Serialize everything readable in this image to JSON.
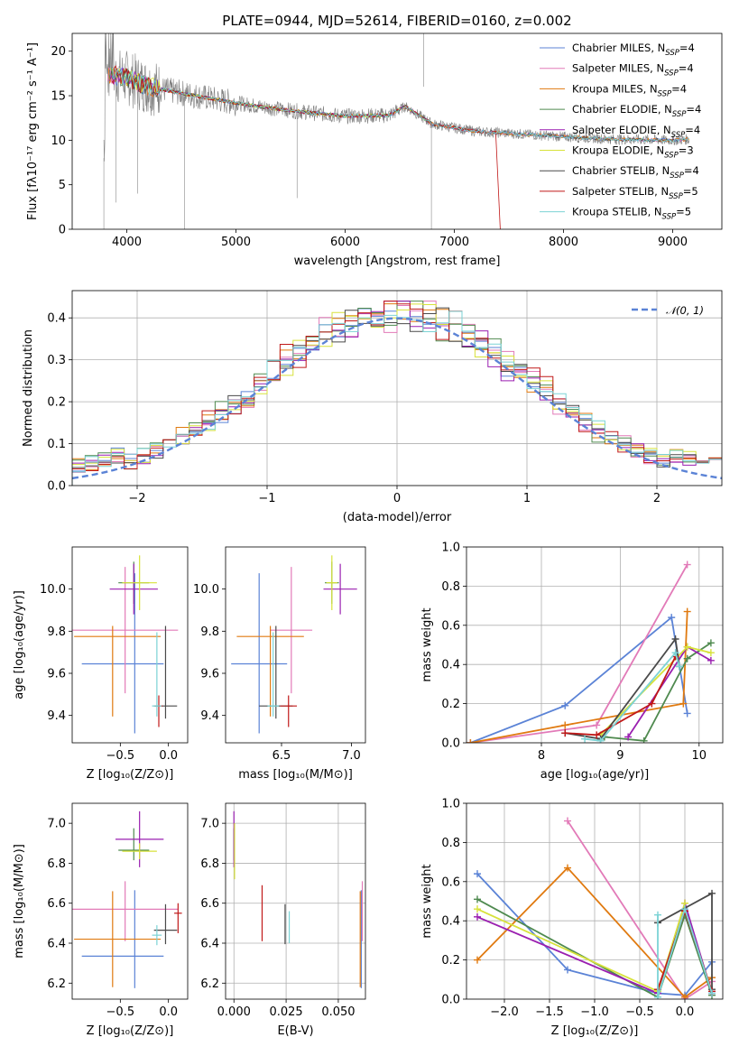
{
  "colors": {
    "Chabrier MILES": "#5b83d6",
    "Salpeter MILES": "#e27ab8",
    "Kroupa MILES": "#e07a10",
    "Chabrier ELODIE": "#4f8a4f",
    "Salpeter ELODIE": "#9a1fb0",
    "Kroupa ELODIE": "#d7e23a",
    "Chabrier STELIB": "#4a4a4a",
    "Salpeter STELIB": "#c01818",
    "Kroupa STELIB": "#7bd3d5"
  },
  "chart_data": [
    {
      "type": "line",
      "title": "PLATE=0944, MJD=52614, FIBERID=0160, z=0.002",
      "xlabel": "wavelength [Angstrom, rest frame]",
      "ylabel": "Flux [fλ10⁻¹⁷ erg cm⁻² s⁻¹ A⁻¹]",
      "xlim": [
        3500,
        9450
      ],
      "ylim": [
        0,
        22
      ],
      "xticks": [
        4000,
        5000,
        6000,
        7000,
        8000,
        9000
      ],
      "yticks": [
        0,
        5,
        10,
        15,
        20
      ],
      "legend_position": "upper-right",
      "legend": [
        {
          "name": "Chabrier MILES",
          "label": "Chabrier MILES, N",
          "sub": "SSP",
          "tail": "=4"
        },
        {
          "name": "Salpeter MILES",
          "label": "Salpeter MILES, N",
          "sub": "SSP",
          "tail": "=4"
        },
        {
          "name": "Kroupa MILES",
          "label": "Kroupa MILES, N",
          "sub": "SSP",
          "tail": "=4"
        },
        {
          "name": "Chabrier ELODIE",
          "label": "Chabrier ELODIE, N",
          "sub": "SSP",
          "tail": "=4"
        },
        {
          "name": "Salpeter ELODIE",
          "label": "Salpeter ELODIE, N",
          "sub": "SSP",
          "tail": "=4"
        },
        {
          "name": "Kroupa ELODIE",
          "label": "Kroupa ELODIE, N",
          "sub": "SSP",
          "tail": "=3"
        },
        {
          "name": "Chabrier STELIB",
          "label": "Chabrier STELIB, N",
          "sub": "SSP",
          "tail": "=4"
        },
        {
          "name": "Salpeter STELIB",
          "label": "Salpeter STELIB, N",
          "sub": "SSP",
          "tail": "=5"
        },
        {
          "name": "Kroupa STELIB",
          "label": "Kroupa STELIB, N",
          "sub": "SSP",
          "tail": "=5"
        }
      ],
      "data": {
        "observed_color": "#7f7f7f",
        "continuum_points": [
          [
            3800,
            17.5
          ],
          [
            4000,
            17.0
          ],
          [
            4200,
            16.0
          ],
          [
            4500,
            15.3
          ],
          [
            4800,
            14.6
          ],
          [
            5200,
            13.8
          ],
          [
            5600,
            13.2
          ],
          [
            6000,
            12.7
          ],
          [
            6400,
            12.8
          ],
          [
            6550,
            13.8
          ],
          [
            6650,
            13.0
          ],
          [
            6800,
            11.8
          ],
          [
            7200,
            11.0
          ],
          [
            7600,
            10.7
          ],
          [
            8000,
            10.4
          ],
          [
            8500,
            10.1
          ],
          [
            9000,
            10.0
          ],
          [
            9150,
            10.1
          ]
        ]
      }
    },
    {
      "type": "histogram",
      "xlabel": "(data-model)/error",
      "ylabel": "Normed distribution",
      "xlim": [
        -2.5,
        2.5
      ],
      "ylim": [
        0,
        0.465
      ],
      "xticks": [
        -2,
        -1,
        0,
        1,
        2
      ],
      "yticks": [
        0.0,
        0.1,
        0.2,
        0.3,
        0.4
      ],
      "grid": true,
      "reference_curve": {
        "name": "N(0,1)",
        "label": "𝒩(0, 1)",
        "mean": 0,
        "std": 1,
        "color": "#5b83d6"
      },
      "bin_width": 0.1,
      "bin_start": -2.5
    },
    {
      "type": "errorbar",
      "xlabel": "Z [log₁₀(Z/Z⊙)]",
      "ylabel": "age  [log₁₀(age/yr)]",
      "xlim": [
        -1.0,
        0.2
      ],
      "ylim": [
        9.27,
        10.2
      ],
      "xticks": [
        -0.5,
        0.0
      ],
      "yticks": [
        9.4,
        9.6,
        9.8,
        10.0
      ],
      "points": [
        {
          "name": "Chabrier MILES",
          "x": -0.35,
          "xerr": [
            0.55,
            0.3
          ],
          "y": 9.645,
          "yerr": [
            0.33,
            0.43
          ]
        },
        {
          "name": "Salpeter MILES",
          "x": -0.45,
          "xerr": [
            0.55,
            0.55
          ],
          "y": 9.805,
          "yerr": [
            0.3,
            0.3
          ]
        },
        {
          "name": "Kroupa MILES",
          "x": -0.58,
          "xerr": [
            0.4,
            0.5
          ],
          "y": 9.775,
          "yerr": [
            0.38,
            0.05
          ]
        },
        {
          "name": "Chabrier ELODIE",
          "x": -0.36,
          "xerr": [
            0.16,
            0.16
          ],
          "y": 10.03,
          "yerr": [
            0.1,
            0.1
          ]
        },
        {
          "name": "Salpeter ELODIE",
          "x": -0.36,
          "xerr": [
            0.25,
            0.25
          ],
          "y": 10.0,
          "yerr": [
            0.12,
            0.12
          ]
        },
        {
          "name": "Kroupa ELODIE",
          "x": -0.3,
          "xerr": [
            0.18,
            0.18
          ],
          "y": 10.03,
          "yerr": [
            0.13,
            0.13
          ]
        },
        {
          "name": "Chabrier STELIB",
          "x": -0.03,
          "xerr": [
            0.12,
            0.12
          ],
          "y": 9.445,
          "yerr": [
            0.06,
            0.38
          ]
        },
        {
          "name": "Salpeter STELIB",
          "x": -0.1,
          "xerr": [
            0.04,
            0.04
          ],
          "y": 9.445,
          "yerr": [
            0.1,
            0.05
          ]
        },
        {
          "name": "Kroupa STELIB",
          "x": -0.12,
          "xerr": [
            0.05,
            0.05
          ],
          "y": 9.445,
          "yerr": [
            0.05,
            0.35
          ]
        }
      ]
    },
    {
      "type": "errorbar",
      "xlabel": "mass [log₁₀(M/M⊙)]",
      "ylabel": "",
      "xlim": [
        6.1,
        7.1
      ],
      "ylim": [
        9.27,
        10.2
      ],
      "xticks": [
        6.5,
        7.0
      ],
      "yticks": [
        9.4,
        9.6,
        9.8,
        10.0
      ],
      "points": [
        {
          "name": "Chabrier MILES",
          "x": 6.34,
          "xerr": [
            0.2,
            0.2
          ],
          "y": 9.645,
          "yerr": [
            0.33,
            0.43
          ]
        },
        {
          "name": "Salpeter MILES",
          "x": 6.57,
          "xerr": [
            0.15,
            0.15
          ],
          "y": 9.805,
          "yerr": [
            0.3,
            0.3
          ]
        },
        {
          "name": "Kroupa MILES",
          "x": 6.42,
          "xerr": [
            0.24,
            0.24
          ],
          "y": 9.775,
          "yerr": [
            0.38,
            0.05
          ]
        },
        {
          "name": "Chabrier ELODIE",
          "x": 6.86,
          "xerr": [
            0.05,
            0.05
          ],
          "y": 10.03,
          "yerr": [
            0.1,
            0.1
          ]
        },
        {
          "name": "Salpeter ELODIE",
          "x": 6.92,
          "xerr": [
            0.12,
            0.12
          ],
          "y": 10.0,
          "yerr": [
            0.12,
            0.12
          ]
        },
        {
          "name": "Kroupa ELODIE",
          "x": 6.86,
          "xerr": [
            0.04,
            0.04
          ],
          "y": 10.03,
          "yerr": [
            0.13,
            0.13
          ]
        },
        {
          "name": "Chabrier STELIB",
          "x": 6.46,
          "xerr": [
            0.12,
            0.12
          ],
          "y": 9.445,
          "yerr": [
            0.06,
            0.38
          ]
        },
        {
          "name": "Salpeter STELIB",
          "x": 6.55,
          "xerr": [
            0.06,
            0.06
          ],
          "y": 9.445,
          "yerr": [
            0.1,
            0.05
          ]
        },
        {
          "name": "Kroupa STELIB",
          "x": 6.44,
          "xerr": [
            0.04,
            0.04
          ],
          "y": 9.445,
          "yerr": [
            0.05,
            0.35
          ]
        }
      ]
    },
    {
      "type": "line",
      "xlabel": "age  [log₁₀(age/yr)]",
      "ylabel": "mass weight",
      "xlim": [
        7.05,
        10.3
      ],
      "ylim": [
        0,
        1
      ],
      "xticks": [
        8,
        9,
        10
      ],
      "yticks": [
        0.0,
        0.2,
        0.4,
        0.6,
        0.8,
        1.0
      ],
      "grid": true,
      "series": [
        {
          "name": "Chabrier MILES",
          "x": [
            7.1,
            8.3,
            9.65,
            9.85
          ],
          "y": [
            0.0,
            0.19,
            0.64,
            0.15
          ]
        },
        {
          "name": "Salpeter MILES",
          "x": [
            7.1,
            8.7,
            9.85
          ],
          "y": [
            0.0,
            0.09,
            0.91
          ]
        },
        {
          "name": "Kroupa MILES",
          "x": [
            7.1,
            8.3,
            9.8,
            9.85
          ],
          "y": [
            0.0,
            0.09,
            0.2,
            0.67
          ]
        },
        {
          "name": "Chabrier ELODIE",
          "x": [
            8.8,
            9.3,
            9.85,
            10.15
          ],
          "y": [
            0.03,
            0.01,
            0.43,
            0.51
          ]
        },
        {
          "name": "Salpeter ELODIE",
          "x": [
            9.1,
            9.85,
            10.15
          ],
          "y": [
            0.03,
            0.49,
            0.42
          ]
        },
        {
          "name": "Kroupa ELODIE",
          "x": [
            8.75,
            9.85,
            10.15
          ],
          "y": [
            0.04,
            0.49,
            0.46
          ]
        },
        {
          "name": "Chabrier STELIB",
          "x": [
            8.3,
            8.75,
            9.7,
            9.75
          ],
          "y": [
            0.05,
            0.02,
            0.53,
            0.39
          ]
        },
        {
          "name": "Salpeter STELIB",
          "x": [
            8.3,
            8.7,
            9.4,
            9.7
          ],
          "y": [
            0.05,
            0.04,
            0.2,
            0.44
          ]
        },
        {
          "name": "Kroupa STELIB",
          "x": [
            8.55,
            8.75,
            9.7,
            9.75
          ],
          "y": [
            0.02,
            0.01,
            0.46,
            0.39
          ]
        }
      ]
    },
    {
      "type": "errorbar",
      "xlabel": "Z [log₁₀(Z/Z⊙)]",
      "ylabel": "mass [log₁₀(M/M⊙)]",
      "xlim": [
        -1.0,
        0.2
      ],
      "ylim": [
        6.12,
        7.1
      ],
      "xticks": [
        -0.5,
        0.0
      ],
      "yticks": [
        6.2,
        6.4,
        6.6,
        6.8,
        7.0
      ],
      "points": [
        {
          "name": "Chabrier MILES",
          "x": -0.35,
          "xerr": [
            0.55,
            0.3
          ],
          "y": 6.335,
          "yerr": [
            0.16,
            0.33
          ]
        },
        {
          "name": "Salpeter MILES",
          "x": -0.45,
          "xerr": [
            0.55,
            0.55
          ],
          "y": 6.57,
          "yerr": [
            0.16,
            0.14
          ]
        },
        {
          "name": "Kroupa MILES",
          "x": -0.58,
          "xerr": [
            0.4,
            0.5
          ],
          "y": 6.42,
          "yerr": [
            0.24,
            0.24
          ]
        },
        {
          "name": "Chabrier ELODIE",
          "x": -0.36,
          "xerr": [
            0.16,
            0.16
          ],
          "y": 6.865,
          "yerr": [
            0.05,
            0.11
          ]
        },
        {
          "name": "Salpeter ELODIE",
          "x": -0.3,
          "xerr": [
            0.25,
            0.25
          ],
          "y": 6.92,
          "yerr": [
            0.14,
            0.14
          ]
        },
        {
          "name": "Kroupa ELODIE",
          "x": -0.3,
          "xerr": [
            0.18,
            0.18
          ],
          "y": 6.86,
          "yerr": [
            0.04,
            0.04
          ]
        },
        {
          "name": "Chabrier STELIB",
          "x": -0.03,
          "xerr": [
            0.12,
            0.12
          ],
          "y": 6.465,
          "yerr": [
            0.07,
            0.13
          ]
        },
        {
          "name": "Salpeter STELIB",
          "x": 0.1,
          "xerr": [
            0.04,
            0.04
          ],
          "y": 6.55,
          "yerr": [
            0.1,
            0.05
          ]
        },
        {
          "name": "Kroupa STELIB",
          "x": -0.12,
          "xerr": [
            0.05,
            0.05
          ],
          "y": 6.44,
          "yerr": [
            0.05,
            0.05
          ]
        }
      ]
    },
    {
      "type": "errorbar",
      "xlabel": "E(B-V)",
      "ylabel": "",
      "xlim": [
        -0.004,
        0.063
      ],
      "ylim": [
        6.12,
        7.1
      ],
      "xticks": [
        0.0,
        0.025,
        0.05
      ],
      "xtick_labels": [
        "0.000",
        "0.025",
        "0.050"
      ],
      "yticks": [
        6.2,
        6.4,
        6.6,
        6.8,
        7.0
      ],
      "grid": true,
      "points": [
        {
          "name": "Chabrier MILES",
          "x": 0.061,
          "xerr": [
            0,
            0
          ],
          "y": 6.335,
          "yerr": [
            0.16,
            0.33
          ]
        },
        {
          "name": "Salpeter MILES",
          "x": 0.0615,
          "xerr": [
            0,
            0
          ],
          "y": 6.57,
          "yerr": [
            0.16,
            0.14
          ]
        },
        {
          "name": "Kroupa MILES",
          "x": 0.0605,
          "xerr": [
            0,
            0
          ],
          "y": 6.42,
          "yerr": [
            0.24,
            0.24
          ]
        },
        {
          "name": "Chabrier ELODIE",
          "x": 0.0,
          "xerr": [
            0,
            0
          ],
          "y": 6.865,
          "yerr": [
            0.05,
            0.11
          ]
        },
        {
          "name": "Salpeter ELODIE",
          "x": 0.0,
          "xerr": [
            0,
            0
          ],
          "y": 6.92,
          "yerr": [
            0.14,
            0.14
          ]
        },
        {
          "name": "Kroupa ELODIE",
          "x": 0.0003,
          "xerr": [
            0,
            0
          ],
          "y": 6.86,
          "yerr": [
            0.14,
            0.14
          ]
        },
        {
          "name": "Chabrier STELIB",
          "x": 0.0245,
          "xerr": [
            0,
            0
          ],
          "y": 6.465,
          "yerr": [
            0.07,
            0.13
          ]
        },
        {
          "name": "Salpeter STELIB",
          "x": 0.0135,
          "xerr": [
            0,
            0
          ],
          "y": 6.55,
          "yerr": [
            0.14,
            0.14
          ]
        },
        {
          "name": "Kroupa STELIB",
          "x": 0.0265,
          "xerr": [
            0,
            0
          ],
          "y": 6.48,
          "yerr": [
            0.08,
            0.08
          ]
        }
      ]
    },
    {
      "type": "line",
      "xlabel": "Z [log₁₀(Z/Z⊙)]",
      "ylabel": "mass weight",
      "xlim": [
        -2.42,
        0.42
      ],
      "ylim": [
        0,
        1
      ],
      "xticks": [
        -2.0,
        -1.5,
        -1.0,
        -0.5,
        0.0
      ],
      "yticks": [
        0.0,
        0.2,
        0.4,
        0.6,
        0.8,
        1.0
      ],
      "grid": true,
      "series": [
        {
          "name": "Chabrier MILES",
          "x": [
            -2.3,
            -1.3,
            -0.3,
            0.0,
            0.3
          ],
          "y": [
            0.64,
            0.15,
            0.03,
            0.02,
            0.19
          ]
        },
        {
          "name": "Salpeter MILES",
          "x": [
            -1.3,
            0.0,
            0.3
          ],
          "y": [
            0.91,
            0.0,
            0.09
          ]
        },
        {
          "name": "Kroupa MILES",
          "x": [
            -2.3,
            -1.3,
            0.0,
            0.3
          ],
          "y": [
            0.2,
            0.67,
            0.01,
            0.11
          ]
        },
        {
          "name": "Chabrier ELODIE",
          "x": [
            -2.3,
            -0.3,
            0.0,
            0.3
          ],
          "y": [
            0.51,
            0.01,
            0.43,
            0.02
          ]
        },
        {
          "name": "Salpeter ELODIE",
          "x": [
            -2.3,
            -0.3,
            0.0,
            0.3
          ],
          "y": [
            0.42,
            0.03,
            0.49,
            0.03
          ]
        },
        {
          "name": "Kroupa ELODIE",
          "x": [
            -2.3,
            -0.3,
            0.0
          ],
          "y": [
            0.46,
            0.04,
            0.49
          ]
        },
        {
          "name": "Chabrier STELIB",
          "x": [
            -0.3,
            0.3,
            0.3
          ],
          "y": [
            0.39,
            0.54,
            0.05
          ]
        },
        {
          "name": "Salpeter STELIB",
          "x": [
            -0.3,
            0.0,
            0.3
          ],
          "y": [
            0.05,
            0.45,
            0.04
          ]
        },
        {
          "name": "Kroupa STELIB",
          "x": [
            -0.3,
            -0.3,
            0.0,
            0.3
          ],
          "y": [
            0.43,
            0.01,
            0.46,
            0.03
          ]
        }
      ]
    }
  ]
}
